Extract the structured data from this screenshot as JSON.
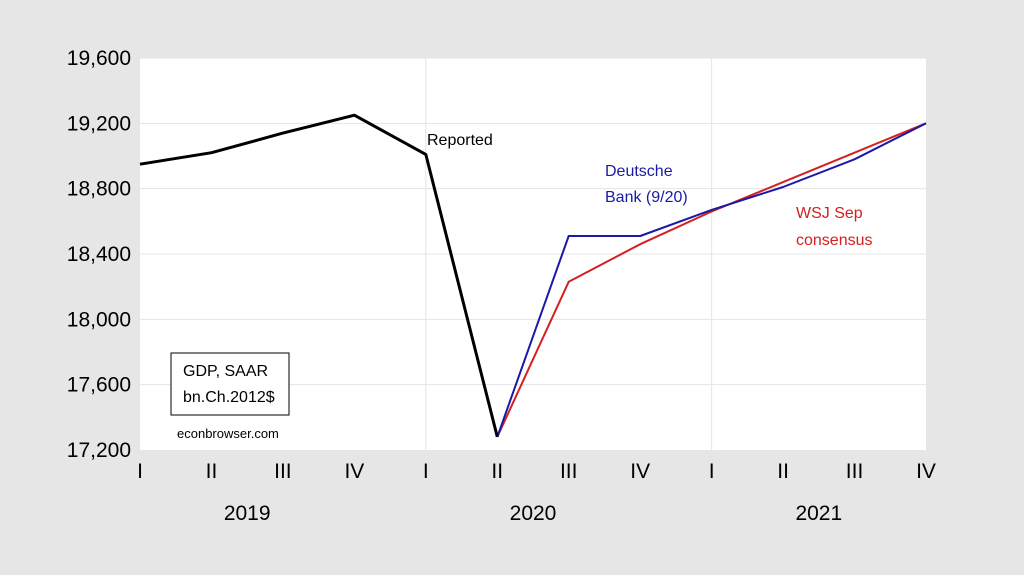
{
  "chart_data": {
    "type": "line",
    "categories": [
      "I",
      "II",
      "III",
      "IV",
      "I",
      "II",
      "III",
      "IV",
      "I",
      "II",
      "III",
      "IV"
    ],
    "years": [
      "2019",
      "2020",
      "2021"
    ],
    "ylim": [
      17200,
      19600
    ],
    "yticks": [
      17200,
      17600,
      18000,
      18400,
      18800,
      19200,
      19600
    ],
    "ytick_labels": [
      "17,200",
      "17,600",
      "18,000",
      "18,400",
      "18,800",
      "19,200",
      "19,600"
    ],
    "grid": true,
    "series": [
      {
        "name": "Reported",
        "color": "#000000",
        "values": [
          18950,
          19020,
          19140,
          19250,
          19010,
          17280,
          null,
          null,
          null,
          null,
          null,
          null
        ]
      },
      {
        "name": "Deutsche Bank (9/20)",
        "color": "#1a1aa6",
        "values": [
          null,
          null,
          null,
          null,
          null,
          17280,
          18510,
          18510,
          18670,
          18810,
          18980,
          19200
        ]
      },
      {
        "name": "WSJ Sep consensus",
        "color": "#d42020",
        "values": [
          null,
          null,
          null,
          null,
          null,
          17280,
          18230,
          18460,
          18660,
          18840,
          19020,
          19200
        ]
      }
    ],
    "annotations": {
      "reported": "Reported",
      "db_line1": "Deutsche",
      "db_line2": "Bank (9/20)",
      "wsj_line1": "WSJ Sep",
      "wsj_line2": "consensus"
    },
    "legend_box": {
      "line1": "GDP, SAAR",
      "line2": "bn.Ch.2012$"
    },
    "source": "econbrowser.com"
  }
}
